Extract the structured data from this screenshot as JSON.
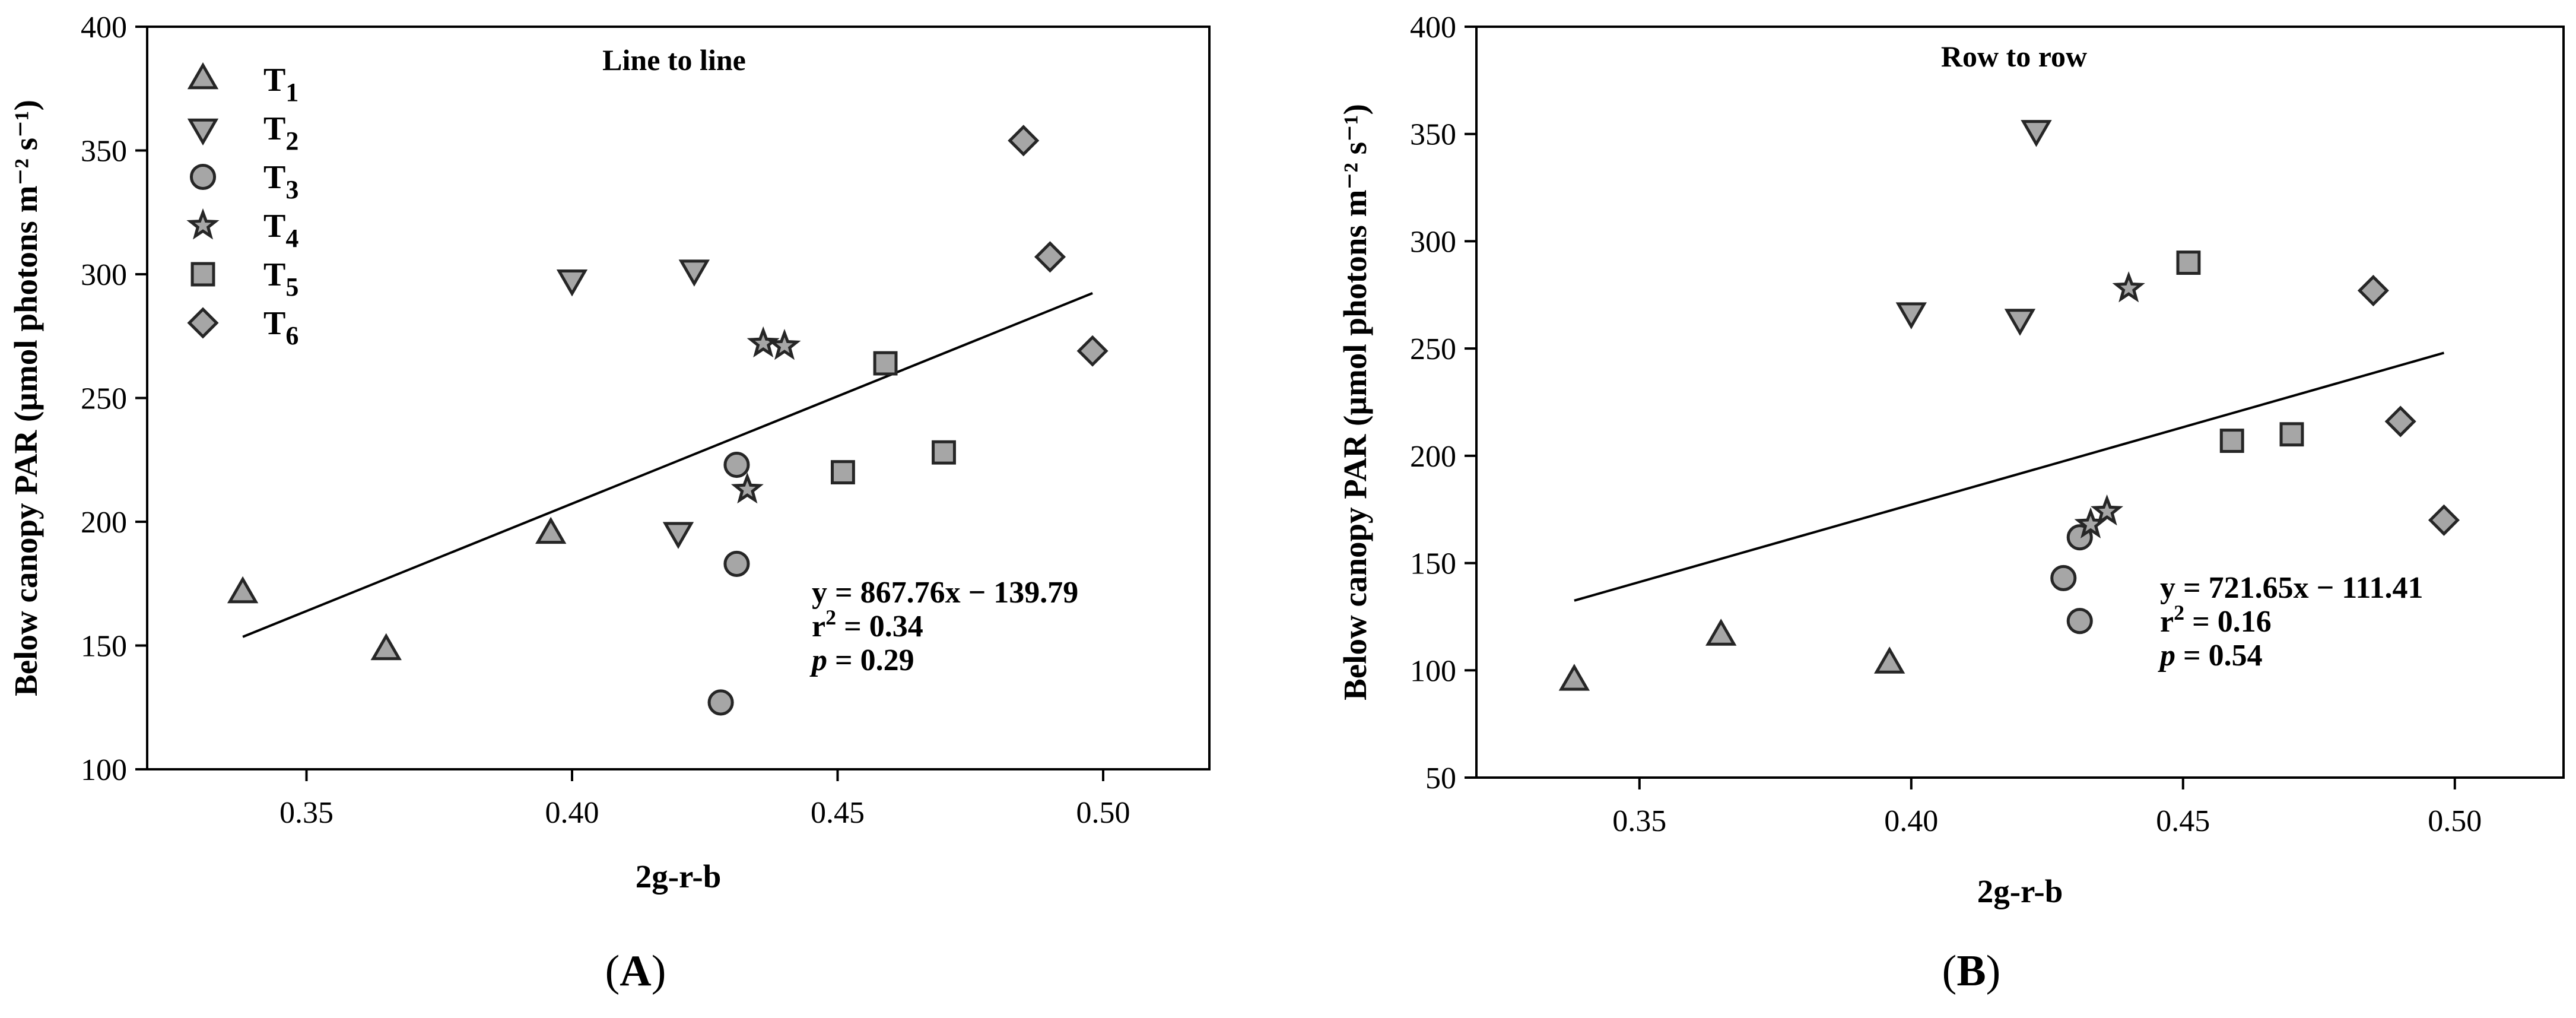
{
  "chart_data": [
    {
      "type": "scatter",
      "panel_label": "A",
      "title": "Line to line",
      "xlabel": "2g-r-b",
      "ylabel": "Below canopy PAR (µmol photons m⁻² s⁻¹)",
      "xlim": [
        0.32,
        0.52
      ],
      "ylim": [
        100,
        400
      ],
      "xticks": [
        0.35,
        0.4,
        0.45,
        0.5
      ],
      "xtick_labels": [
        "0.35",
        "0.40",
        "0.45",
        "0.50"
      ],
      "yticks": [
        100,
        150,
        200,
        250,
        300,
        350,
        400
      ],
      "ytick_labels": [
        "100",
        "150",
        "200",
        "250",
        "300",
        "350",
        "400"
      ],
      "legend": {
        "placement": "top-left",
        "entries": [
          "T1",
          "T2",
          "T3",
          "T4",
          "T5",
          "T6"
        ]
      },
      "series": [
        {
          "name": "T1",
          "marker": "triangle-up",
          "x": [
            0.338,
            0.365,
            0.396
          ],
          "y": [
            171,
            148,
            195
          ]
        },
        {
          "name": "T2",
          "marker": "triangle-down",
          "x": [
            0.4,
            0.42,
            0.423
          ],
          "y": [
            298,
            196,
            302
          ]
        },
        {
          "name": "T3",
          "marker": "circle",
          "x": [
            0.428,
            0.431,
            0.431
          ],
          "y": [
            127,
            183,
            223
          ]
        },
        {
          "name": "T4",
          "marker": "star",
          "x": [
            0.433,
            0.436,
            0.44
          ],
          "y": [
            213,
            272,
            271
          ]
        },
        {
          "name": "T5",
          "marker": "square",
          "x": [
            0.451,
            0.459,
            0.47
          ],
          "y": [
            220,
            264,
            228
          ]
        },
        {
          "name": "T6",
          "marker": "diamond",
          "x": [
            0.485,
            0.49,
            0.498
          ],
          "y": [
            354,
            307,
            269
          ]
        }
      ],
      "fit": {
        "slope": 867.76,
        "intercept": -139.79,
        "x_range": [
          0.338,
          0.498
        ]
      },
      "annotation": {
        "equation": "y = 867.76x − 139.79",
        "r2_label": "r",
        "r2_value": " = 0.34",
        "p_label": "p",
        "p_value": " = 0.29"
      }
    },
    {
      "type": "scatter",
      "panel_label": "B",
      "title": "Row to row",
      "xlabel": "2g-r-b",
      "ylabel": "Below canopy PAR (µmol photons m⁻² s⁻¹)",
      "xlim": [
        0.32,
        0.52
      ],
      "ylim": [
        50,
        400
      ],
      "xticks": [
        0.35,
        0.4,
        0.45,
        0.5
      ],
      "xtick_labels": [
        "0.35",
        "0.40",
        "0.45",
        "0.50"
      ],
      "yticks": [
        50,
        100,
        150,
        200,
        250,
        300,
        350,
        400
      ],
      "ytick_labels": [
        "50",
        "100",
        "150",
        "200",
        "250",
        "300",
        "350",
        "400"
      ],
      "series": [
        {
          "name": "T1",
          "marker": "triangle-up",
          "x": [
            0.338,
            0.365,
            0.396
          ],
          "y": [
            95,
            116,
            103
          ]
        },
        {
          "name": "T2",
          "marker": "triangle-down",
          "x": [
            0.4,
            0.42,
            0.423
          ],
          "y": [
            267,
            264,
            352
          ]
        },
        {
          "name": "T3",
          "marker": "circle",
          "x": [
            0.428,
            0.431,
            0.431
          ],
          "y": [
            143,
            123,
            162
          ]
        },
        {
          "name": "T4",
          "marker": "star",
          "x": [
            0.433,
            0.436,
            0.44
          ],
          "y": [
            168,
            174,
            278
          ]
        },
        {
          "name": "T5",
          "marker": "square",
          "x": [
            0.451,
            0.459,
            0.47
          ],
          "y": [
            290,
            207,
            210
          ]
        },
        {
          "name": "T6",
          "marker": "diamond",
          "x": [
            0.485,
            0.49,
            0.498
          ],
          "y": [
            277,
            216,
            170
          ]
        }
      ],
      "fit": {
        "slope": 721.65,
        "intercept": -111.41,
        "x_range": [
          0.338,
          0.498
        ]
      },
      "annotation": {
        "equation": "y = 721.65x − 111.41",
        "r2_label": "r",
        "r2_value": " = 0.16",
        "p_label": "p",
        "p_value": " = 0.54"
      }
    }
  ],
  "colors": {
    "marker_fill": "#a6a6a6",
    "marker_stroke": "#262626",
    "line": "#000000",
    "axis": "#000000"
  }
}
